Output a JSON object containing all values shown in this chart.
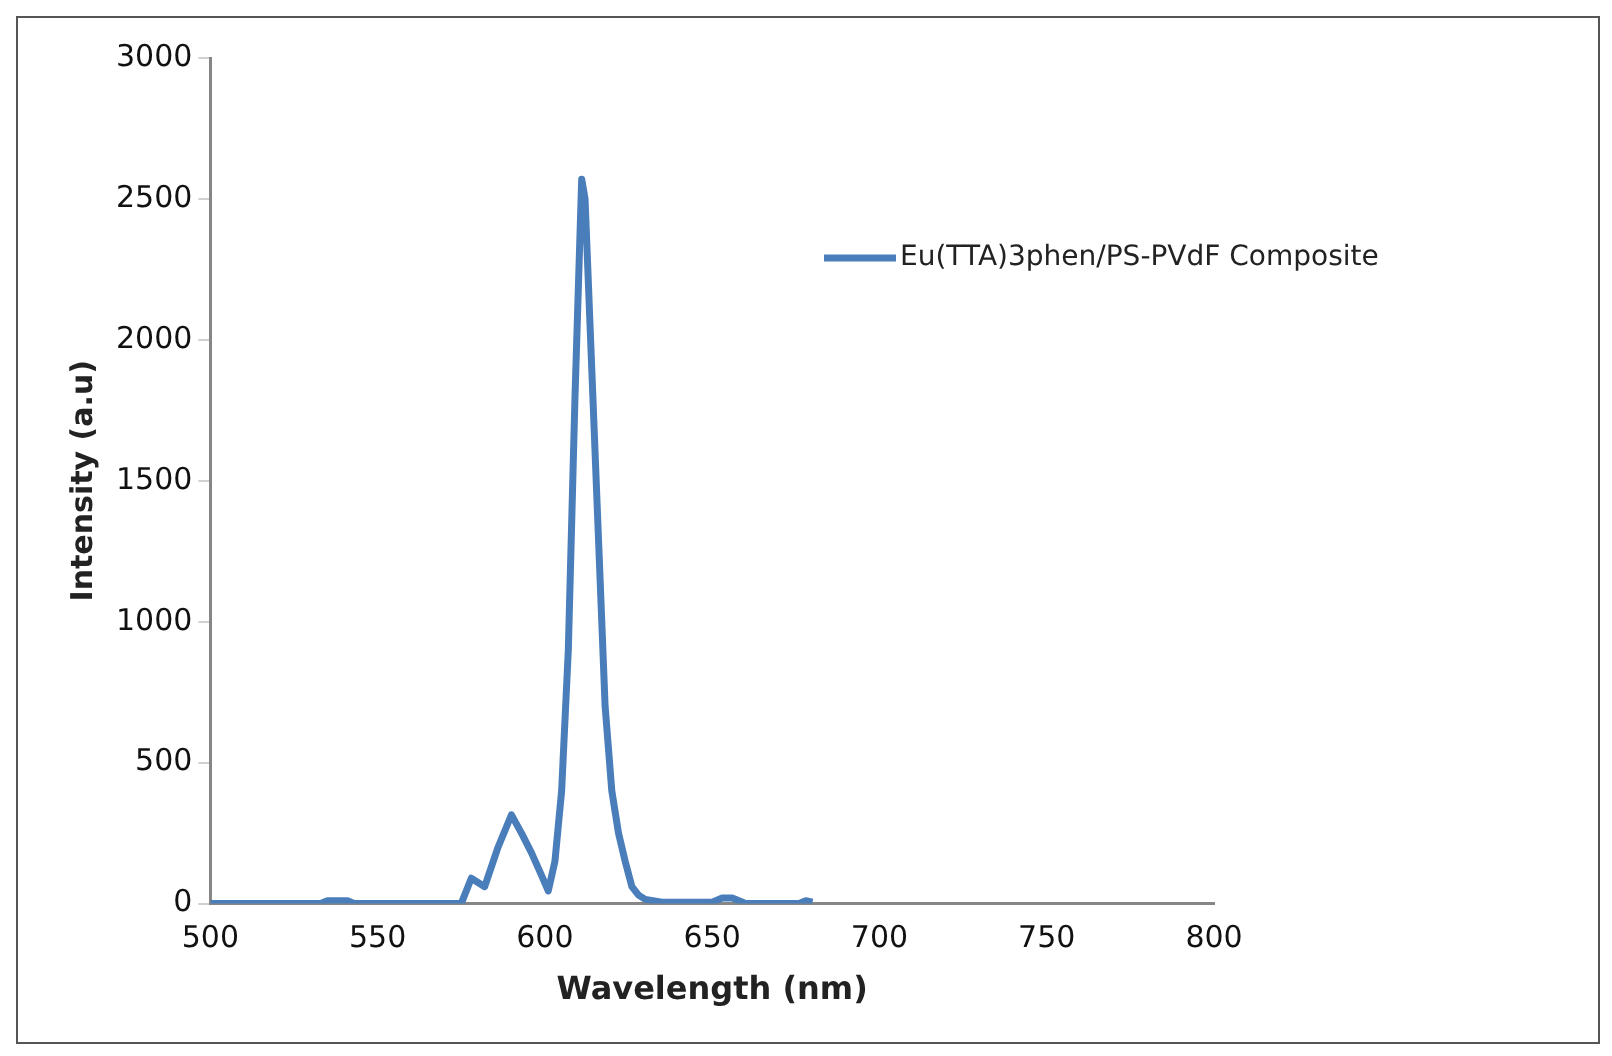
{
  "chart_data": {
    "type": "line",
    "xlabel": "Wavelength (nm)",
    "ylabel": "Intensity (a.u)",
    "xlim": [
      500,
      800
    ],
    "xticks": [
      500,
      550,
      600,
      650,
      700,
      750,
      800
    ],
    "ylim": [
      0,
      3000
    ],
    "yticks": [
      0,
      500,
      1000,
      1500,
      2000,
      2500,
      3000
    ],
    "legend": "top right",
    "marker": "none",
    "series": [
      {
        "name": "Eu(TTA)3phen/PS-PVdF Composite",
        "color": "#4a7ebb",
        "x": [
          500,
          533,
          535,
          541,
          543,
          575,
          578,
          580,
          582,
          586,
          590,
          593,
          596,
          599,
          601,
          603,
          605,
          607,
          609,
          611,
          612,
          614,
          616,
          618,
          620,
          622,
          624,
          626,
          628,
          630,
          635,
          650,
          653,
          656,
          660,
          676,
          678,
          680
        ],
        "values": [
          0,
          0,
          10,
          10,
          0,
          0,
          90,
          75,
          60,
          200,
          315,
          250,
          180,
          100,
          45,
          150,
          400,
          900,
          1800,
          2570,
          2500,
          1900,
          1300,
          700,
          400,
          250,
          150,
          60,
          30,
          15,
          5,
          5,
          20,
          20,
          0,
          0,
          10,
          5
        ]
      }
    ]
  }
}
